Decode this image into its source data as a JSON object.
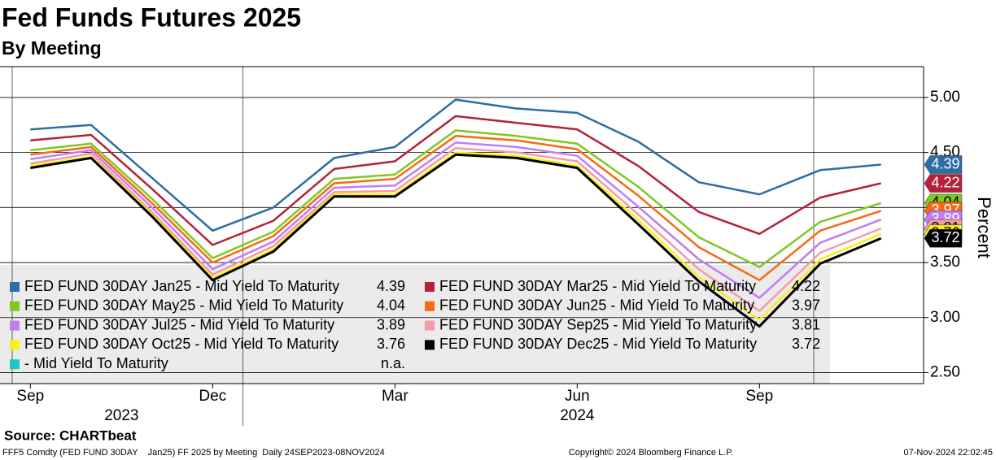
{
  "chart_data": {
    "type": "line",
    "title": "Fed Funds Futures 2025",
    "subtitle": "By Meeting",
    "y_axis_label": "Percent",
    "source": "Source: CHARTbeat",
    "footer_left": "FFF5 Comdty (FED FUND 30DAY    Jan25) FF 2025 by Meeting  Daily 24SEP2023-08NOV2024",
    "footer_center": "Copyright© 2024 Bloomberg Finance L.P.",
    "footer_right": "07-Nov-2024 22:02:45",
    "x": [
      "2023-09",
      "2023-10",
      "2023-11",
      "2023-12",
      "2024-01",
      "2024-02",
      "2024-03",
      "2024-04",
      "2024-05",
      "2024-06",
      "2024-07",
      "2024-08",
      "2024-09",
      "2024-10",
      "2024-11"
    ],
    "xticks": [
      {
        "value": "2023-09",
        "label": "Sep"
      },
      {
        "value": "2023-12",
        "label": "Dec"
      },
      {
        "value": "2024-03",
        "label": "Mar"
      },
      {
        "value": "2024-06",
        "label": "Jun"
      },
      {
        "value": "2024-09",
        "label": "Sep"
      }
    ],
    "years": [
      "2023",
      "2024"
    ],
    "ylim": [
      2.4,
      5.28
    ],
    "yticks": [
      {
        "value": 2.5,
        "label": "2.50"
      },
      {
        "value": 3,
        "label": "3.00"
      },
      {
        "value": 3.5,
        "label": "3.50"
      },
      {
        "value": 4,
        "label": "4.00"
      },
      {
        "value": 4.5,
        "label": "4.50"
      },
      {
        "value": 5,
        "label": "5.00"
      }
    ],
    "grid": true,
    "series": [
      {
        "name": "FED FUND 30DAY Jan25 - Mid Yield To Maturity",
        "color": "#2e6ca4",
        "values": [
          4.71,
          4.75,
          4.27,
          3.79,
          4.0,
          4.45,
          4.55,
          4.98,
          4.9,
          4.86,
          4.6,
          4.23,
          4.12,
          4.34,
          4.39
        ]
      },
      {
        "name": "FED FUND 30DAY Mar25 - Mid Yield To Maturity",
        "color": "#b5203a",
        "values": [
          4.61,
          4.66,
          4.17,
          3.66,
          3.88,
          4.35,
          4.42,
          4.83,
          4.77,
          4.71,
          4.38,
          3.96,
          3.76,
          4.09,
          4.22
        ]
      },
      {
        "name": "FED FUND 30DAY May25 - Mid Yield To Maturity",
        "color": "#7ec820",
        "values": [
          4.52,
          4.58,
          4.08,
          3.54,
          3.78,
          4.26,
          4.3,
          4.7,
          4.65,
          4.58,
          4.19,
          3.73,
          3.46,
          3.87,
          4.04
        ]
      },
      {
        "name": "FED FUND 30DAY Jun25 - Mid Yield To Maturity",
        "color": "#f56a12",
        "values": [
          4.48,
          4.55,
          4.04,
          3.5,
          3.74,
          4.22,
          4.26,
          4.65,
          4.61,
          4.53,
          4.11,
          3.64,
          3.34,
          3.79,
          3.97
        ]
      },
      {
        "name": "FED FUND 30DAY Jul25 - Mid Yield To Maturity",
        "color": "#c07ef2",
        "values": [
          4.44,
          4.52,
          4.0,
          3.44,
          3.69,
          4.18,
          4.2,
          4.59,
          4.55,
          4.47,
          4.01,
          3.53,
          3.18,
          3.68,
          3.89
        ]
      },
      {
        "name": "FED FUND 30DAY Sep25 - Mid Yield To Maturity",
        "color": "#f59aa6",
        "values": [
          4.4,
          4.49,
          3.96,
          3.39,
          3.65,
          4.14,
          4.15,
          4.54,
          4.5,
          4.42,
          3.94,
          3.44,
          3.06,
          3.59,
          3.81
        ]
      },
      {
        "name": "FED FUND 30DAY Oct25 - Mid Yield To Maturity",
        "color": "#f7f01c",
        "values": [
          4.38,
          4.46,
          3.94,
          3.36,
          3.62,
          4.12,
          4.12,
          4.5,
          4.47,
          4.38,
          3.89,
          3.37,
          2.98,
          3.53,
          3.76
        ]
      },
      {
        "name": "FED FUND 30DAY Dec25 - Mid Yield To Maturity",
        "color": "#000000",
        "values": [
          4.36,
          4.45,
          3.92,
          3.34,
          3.6,
          4.1,
          4.1,
          4.48,
          4.45,
          4.36,
          3.85,
          3.33,
          2.92,
          3.49,
          3.72
        ]
      },
      {
        "name": "- Mid Yield To Maturity",
        "color": "#1ec8c8",
        "values": [
          null,
          null,
          null,
          null,
          null,
          null,
          null,
          null,
          null,
          null,
          null,
          null,
          null,
          null,
          null
        ],
        "latest_label": "n.a."
      }
    ]
  }
}
